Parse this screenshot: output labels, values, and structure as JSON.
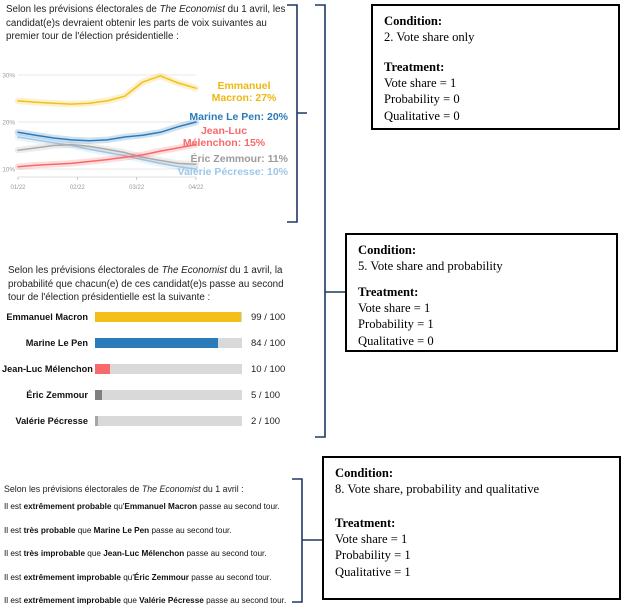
{
  "vote_share_panel": {
    "header": [
      {
        "t": "Selon les prévisions électorales de "
      },
      {
        "t": "The Economist",
        "i": true
      },
      {
        "t": " du 1 avril, les candidat(e)s devraient obtenir les parts de voix suivantes au premier tour de l'élection présidentielle :"
      }
    ],
    "labels": [
      {
        "lines": [
          "Emmanuel",
          "Macron: 27%"
        ],
        "color": "#EDB70F"
      },
      {
        "lines": [
          "Marine Le Pen: 20%"
        ],
        "color": "#2B7BBA"
      },
      {
        "lines": [
          "Jean-Luc",
          "Mélenchon: 15%"
        ],
        "color": "#F8696B"
      },
      {
        "lines": [
          "Éric Zemmour: 11%"
        ],
        "color": "#9C9C9C"
      },
      {
        "lines": [
          "Valérie Pécresse: 10%"
        ],
        "color": "#9DC7E8"
      }
    ]
  },
  "chart_data": [
    {
      "type": "line",
      "title": "First-round vote share forecast (The Economist, 1 April)",
      "x_tick_labels": [
        "01/22",
        "02/22",
        "03/22",
        "04/22"
      ],
      "y_ticks": [
        {
          "label": "10%",
          "value": 10
        },
        {
          "label": "20%",
          "value": 20
        },
        {
          "label": "30%",
          "value": 30
        }
      ],
      "ylim": [
        8,
        32
      ],
      "grid": true,
      "series": [
        {
          "name": "Emmanuel Macron",
          "color": "#F2C018",
          "final_value": 27,
          "values": [
            24.5,
            24.2,
            24.0,
            23.8,
            24.0,
            24.5,
            25.5,
            28.5,
            29.8,
            28.3,
            27.2
          ]
        },
        {
          "name": "Marine Le Pen",
          "color": "#2B7BBA",
          "final_value": 20,
          "values": [
            17.8,
            17.2,
            16.6,
            16.2,
            16.0,
            16.2,
            16.8,
            17.2,
            17.8,
            19.0,
            20.0
          ]
        },
        {
          "name": "Jean-Luc Mélenchon",
          "color": "#F8696B",
          "final_value": 15,
          "values": [
            10.5,
            10.8,
            11.0,
            11.2,
            11.6,
            12.0,
            12.5,
            13.0,
            13.8,
            14.5,
            15.2
          ]
        },
        {
          "name": "Éric Zemmour",
          "color": "#ABABAB",
          "final_value": 11,
          "values": [
            14.0,
            14.5,
            15.0,
            15.2,
            14.8,
            14.2,
            13.5,
            12.5,
            11.8,
            11.2,
            11.0
          ]
        },
        {
          "name": "Valérie Pécresse",
          "color": "#9DC7E8",
          "final_value": 10,
          "values": [
            16.8,
            16.2,
            15.6,
            15.0,
            14.2,
            13.5,
            12.8,
            12.0,
            11.2,
            10.5,
            10.0
          ]
        }
      ]
    },
    {
      "type": "bar",
      "title": "Probability of reaching the second round",
      "categories": [
        "Emmanuel Macron",
        "Marine Le Pen",
        "Jean-Luc Mélenchon",
        "Éric Zemmour",
        "Valérie Pécresse"
      ],
      "values": [
        99,
        84,
        10,
        5,
        2
      ],
      "max": 100,
      "value_labels": [
        "99 / 100",
        "84 / 100",
        "10 / 100",
        "5 / 100",
        "2 / 100"
      ],
      "colors": [
        "#F2C018",
        "#2B7BBA",
        "#F8696B",
        "#7F7F7F",
        "#A6A6A6"
      ],
      "track_color": "#D9D9D9"
    }
  ],
  "probability_panel": {
    "header": [
      {
        "t": "Selon les prévisions électorales de "
      },
      {
        "t": "The Economist",
        "i": true
      },
      {
        "t": " du 1 avril, la probabilité que chacun(e) de ces candidat(e)s passe au second tour de l'élection présidentielle est la suivante :"
      }
    ]
  },
  "qualitative_panel": {
    "header": [
      {
        "t": "Selon les prévisions électorales de "
      },
      {
        "t": "The Economist",
        "i": true
      },
      {
        "t": " du 1 avril :"
      }
    ],
    "statements": [
      [
        {
          "t": "Il est "
        },
        {
          "t": "extrêmement probable",
          "b": true
        },
        {
          "t": " qu'"
        },
        {
          "t": "Emmanuel Macron",
          "b": true
        },
        {
          "t": " passe au second tour."
        }
      ],
      [
        {
          "t": "Il est "
        },
        {
          "t": "très probable",
          "b": true
        },
        {
          "t": " que "
        },
        {
          "t": "Marine Le Pen",
          "b": true
        },
        {
          "t": " passe au second tour."
        }
      ],
      [
        {
          "t": "Il est "
        },
        {
          "t": "très improbable",
          "b": true
        },
        {
          "t": " que "
        },
        {
          "t": "Jean-Luc Mélenchon",
          "b": true
        },
        {
          "t": " passe au second tour."
        }
      ],
      [
        {
          "t": "Il est "
        },
        {
          "t": "extrêmement improbable",
          "b": true
        },
        {
          "t": " qu'"
        },
        {
          "t": "Éric Zemmour",
          "b": true
        },
        {
          "t": " passe au second tour."
        }
      ],
      [
        {
          "t": "Il est "
        },
        {
          "t": "extrêmement improbable",
          "b": true
        },
        {
          "t": " que "
        },
        {
          "t": "Valérie Pécresse",
          "b": true
        },
        {
          "t": " passe au second tour."
        }
      ]
    ]
  },
  "condition_boxes": [
    {
      "heading_condition": "Condition:",
      "condition": "2. Vote share only",
      "heading_treatment": "Treatment:",
      "treatments": [
        "Vote share = 1",
        "Probability = 0",
        "Qualitative = 0"
      ]
    },
    {
      "heading_condition": "Condition:",
      "condition": "5. Vote share and probability",
      "heading_treatment": "Treatment:",
      "treatments": [
        "Vote share = 1",
        "Probability = 1",
        "Qualitative = 0"
      ]
    },
    {
      "heading_condition": "Condition:",
      "condition": "8. Vote share, probability and qualitative",
      "heading_treatment": "Treatment:",
      "treatments": [
        "Vote share = 1",
        "Probability = 1",
        "Qualitative = 1"
      ]
    }
  ],
  "bracket_color": "#1F3864"
}
